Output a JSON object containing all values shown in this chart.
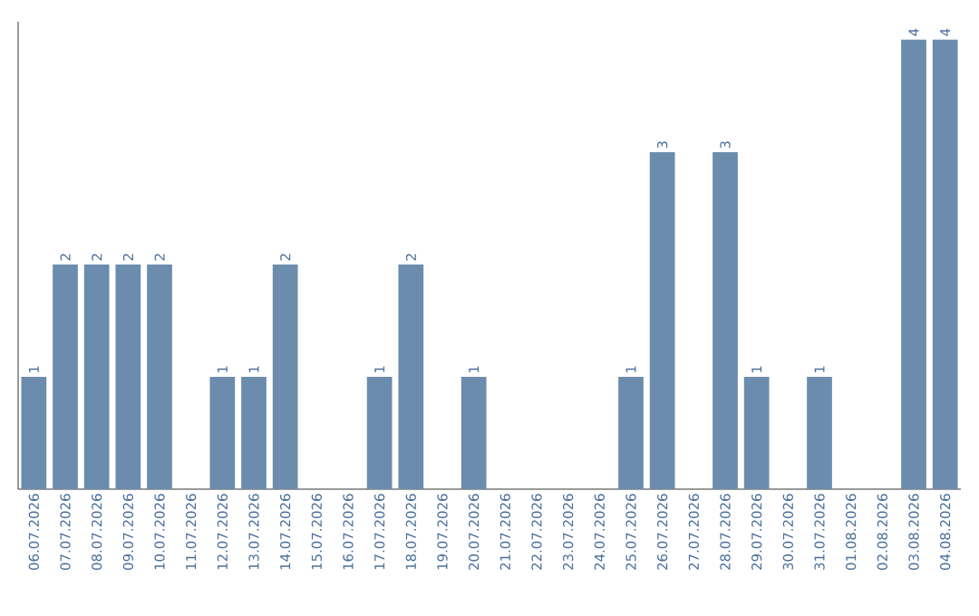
{
  "chart_data": {
    "type": "bar",
    "categories": [
      "06.07.2026",
      "07.07.2026",
      "08.07.2026",
      "09.07.2026",
      "10.07.2026",
      "11.07.2026",
      "12.07.2026",
      "13.07.2026",
      "14.07.2026",
      "15.07.2026",
      "16.07.2026",
      "17.07.2026",
      "18.07.2026",
      "19.07.2026",
      "20.07.2026",
      "21.07.2026",
      "22.07.2026",
      "23.07.2026",
      "24.07.2026",
      "25.07.2026",
      "26.07.2026",
      "27.07.2026",
      "28.07.2026",
      "29.07.2026",
      "30.07.2026",
      "31.07.2026",
      "01.08.2026",
      "02.08.2026",
      "03.08.2026",
      "04.08.2026"
    ],
    "values": [
      1,
      2,
      2,
      2,
      2,
      0,
      1,
      1,
      2,
      0,
      0,
      1,
      2,
      0,
      1,
      0,
      0,
      0,
      0,
      1,
      3,
      0,
      3,
      1,
      0,
      1,
      0,
      0,
      4,
      4
    ],
    "value_labels": [
      "1",
      "2",
      "2",
      "2",
      "2",
      null,
      "1",
      "1",
      "2",
      null,
      null,
      "1",
      "2",
      null,
      "1",
      null,
      null,
      null,
      null,
      "1",
      "3",
      null,
      "3",
      "1",
      null,
      "1",
      null,
      null,
      "4",
      "4"
    ],
    "color": "#6b8cad",
    "tick_labels": "x"
  }
}
